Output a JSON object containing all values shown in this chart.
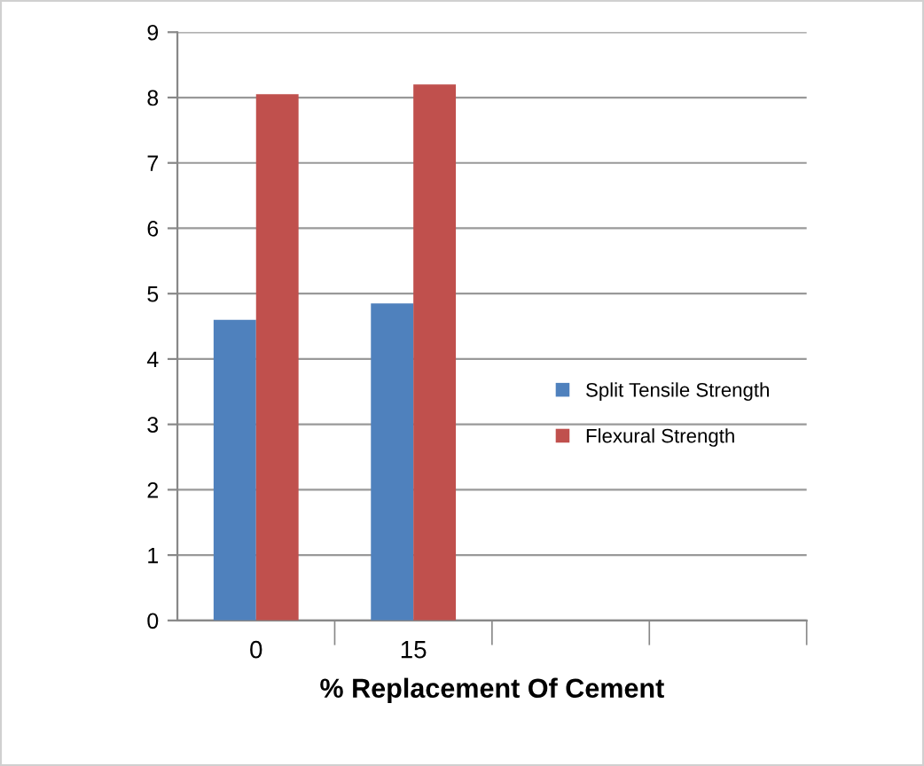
{
  "chart_data": {
    "type": "bar",
    "xlabel": "% Replacement Of Cement",
    "categories": [
      "0",
      "15",
      null,
      null
    ],
    "series": [
      {
        "name": "Split Tensile Strength",
        "color": "#4f81bd",
        "values": [
          4.6,
          4.85,
          null,
          null
        ]
      },
      {
        "name": "Flexural Strength",
        "color": "#c0504d",
        "values": [
          8.05,
          8.2,
          null,
          null
        ]
      }
    ],
    "ylim": [
      0,
      9
    ],
    "yticks": [
      0,
      1,
      2,
      3,
      4,
      5,
      6,
      7,
      8,
      9
    ],
    "grid": "y",
    "legend": "right"
  }
}
